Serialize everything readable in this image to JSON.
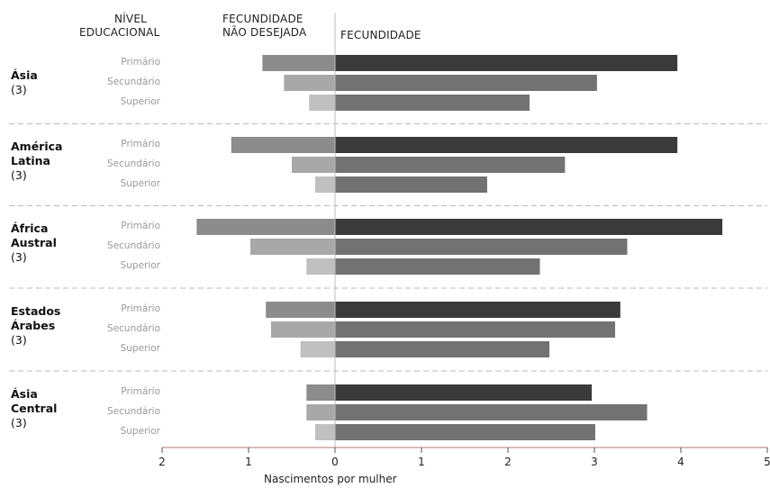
{
  "chart_data": {
    "type": "bar",
    "headers": {
      "level_l1": "NÍVEL",
      "level_l2": "EDUCACIONAL",
      "unwanted_l1": "FECUNDIDADE",
      "unwanted_l2": "NÃO DESEJADA",
      "fertility": "FECUNDIDADE"
    },
    "xlabel": "Nascimentos por mulher",
    "xlim": [
      -2,
      5
    ],
    "ticks": [
      {
        "value": -2,
        "label": "2"
      },
      {
        "value": -1,
        "label": "1"
      },
      {
        "value": 0,
        "label": "0"
      },
      {
        "value": 1,
        "label": "1"
      },
      {
        "value": 2,
        "label": "2"
      },
      {
        "value": 3,
        "label": "3"
      },
      {
        "value": 4,
        "label": "4"
      },
      {
        "value": 5,
        "label": "5"
      }
    ],
    "levels": [
      "Primário",
      "Secundário",
      "Superior"
    ],
    "groups": [
      {
        "name_l1": "Ásia",
        "name_l2": "",
        "count": "(3)",
        "unwanted": [
          0.84,
          0.59,
          0.3
        ],
        "fertility": [
          3.96,
          3.03,
          2.25
        ]
      },
      {
        "name_l1": "América",
        "name_l2": "Latina",
        "count": "(3)",
        "unwanted": [
          1.2,
          0.5,
          0.23
        ],
        "fertility": [
          3.96,
          2.66,
          1.76
        ]
      },
      {
        "name_l1": "África",
        "name_l2": "Austral",
        "count": "(3)",
        "unwanted": [
          1.6,
          0.98,
          0.33
        ],
        "fertility": [
          4.48,
          3.38,
          2.37
        ]
      },
      {
        "name_l1": "Estados",
        "name_l2": "Árabes",
        "count": "(3)",
        "unwanted": [
          0.8,
          0.74,
          0.4
        ],
        "fertility": [
          3.3,
          3.24,
          2.48
        ]
      },
      {
        "name_l1": "Ásia",
        "name_l2": "Central",
        "count": "(3)",
        "unwanted": [
          0.33,
          0.33,
          0.23
        ],
        "fertility": [
          2.97,
          3.61,
          3.01
        ]
      }
    ],
    "colors": {
      "fertility": [
        "#3a3a3a",
        "#727272",
        "#727272"
      ],
      "unwanted": [
        "#8c8c8c",
        "#a8a8a8",
        "#c0c0c0"
      ],
      "divider": "#bbbbbb",
      "axis": "#b07a7a"
    }
  }
}
